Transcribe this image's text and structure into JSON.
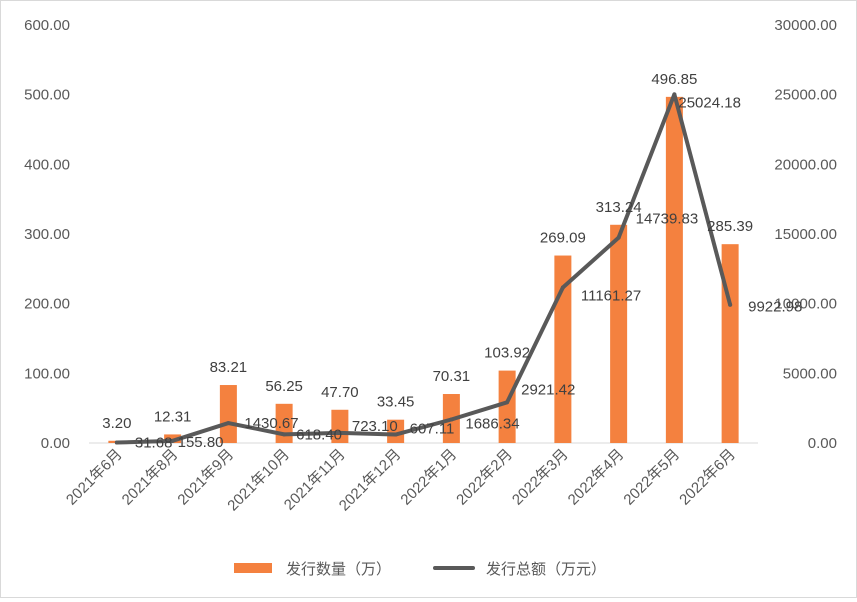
{
  "chart_data": {
    "type": "bar+line",
    "categories": [
      "2021年6月",
      "2021年8月",
      "2021年9月",
      "2021年10月",
      "2021年11月",
      "2021年12月",
      "2022年1月",
      "2022年2月",
      "2022年3月",
      "2022年4月",
      "2022年5月",
      "2022年6月"
    ],
    "series": [
      {
        "name": "发行数量（万）",
        "type": "bar",
        "axis": "left",
        "color": "#F4813F",
        "values": [
          3.2,
          12.31,
          83.21,
          56.25,
          47.7,
          33.45,
          70.31,
          103.92,
          269.09,
          313.24,
          496.85,
          285.39
        ],
        "labels": [
          "3.20",
          "12.31",
          "83.21",
          "56.25",
          "47.70",
          "33.45",
          "70.31",
          "103.92",
          "269.09",
          "313.24",
          "496.85",
          "285.39"
        ]
      },
      {
        "name": "发行总额（万元）",
        "type": "line",
        "axis": "right",
        "color": "#595959",
        "values": [
          31.68,
          155.8,
          1430.67,
          618.4,
          723.1,
          607.11,
          1686.34,
          2921.42,
          11161.27,
          14739.83,
          25024.18,
          9922.98
        ],
        "labels": [
          "31.68",
          "155.80",
          "1430.67",
          "618.40",
          "723.10",
          "607.11",
          "1686.34",
          "2921.42",
          "11161.27",
          "14739.83",
          "25024.18",
          "9922.98"
        ]
      }
    ],
    "y_left": {
      "min": 0,
      "max": 600,
      "step": 100,
      "ticks": [
        "0.00",
        "100.00",
        "200.00",
        "300.00",
        "400.00",
        "500.00",
        "600.00"
      ]
    },
    "y_right": {
      "min": 0,
      "max": 30000,
      "step": 5000,
      "ticks": [
        "0.00",
        "5000.00",
        "10000.00",
        "15000.00",
        "20000.00",
        "25000.00",
        "30000.00"
      ]
    },
    "grid": false,
    "legend": "bottom",
    "title": "",
    "xlabel": "",
    "ylabel": ""
  }
}
